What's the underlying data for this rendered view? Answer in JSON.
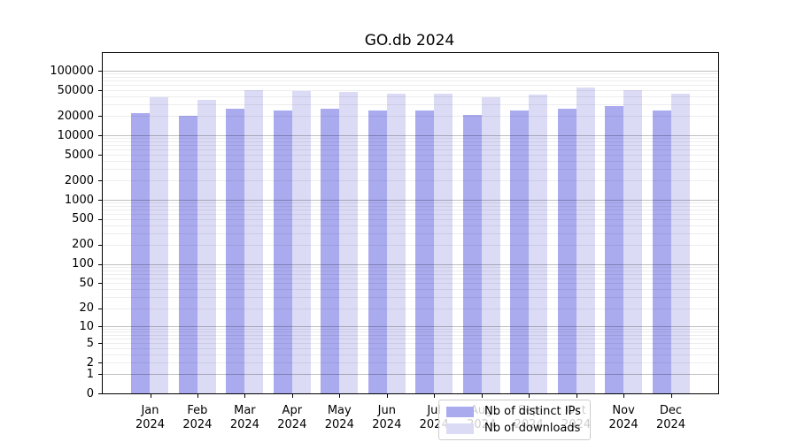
{
  "title": "GO.db 2024",
  "legend": {
    "entries": [
      {
        "label": "Nb of distinct IPs",
        "color": "#aaaaef"
      },
      {
        "label": "Nb of downloads",
        "color": "#dbdbf6"
      }
    ]
  },
  "colors": {
    "bar_distinct_ips": "#aaaaef",
    "bar_downloads": "#dbdbf6",
    "major_grid": "#bfbfbf",
    "minor_grid": "#e9e9e9",
    "axis": "#000000",
    "text": "#000000"
  },
  "chart_data": {
    "type": "bar",
    "title": "GO.db 2024",
    "categories": [
      "Jan 2024",
      "Feb 2024",
      "Mar 2024",
      "Apr 2024",
      "May 2024",
      "Jun 2024",
      "Jul 2024",
      "Aug 2024",
      "Sep 2024",
      "Oct 2024",
      "Nov 2024",
      "Dec 2024"
    ],
    "series": [
      {
        "name": "Nb of distinct IPs",
        "color": "#aaaaef",
        "values": [
          22100,
          20100,
          25400,
          24600,
          25900,
          23900,
          24100,
          21000,
          24300,
          25700,
          28500,
          24300
        ]
      },
      {
        "name": "Nb of downloads",
        "color": "#dbdbf6",
        "values": [
          38700,
          35500,
          49800,
          48300,
          46800,
          43500,
          43900,
          39100,
          42500,
          55500,
          49800,
          43900
        ]
      }
    ],
    "xlabel": "",
    "ylabel": "",
    "yscale": "log(1+y)",
    "yticks": [
      100000,
      50000,
      20000,
      10000,
      5000,
      2000,
      1000,
      500,
      200,
      100,
      50,
      20,
      10,
      5,
      2,
      1,
      0
    ],
    "ylim": [
      0,
      187000
    ],
    "grid": true,
    "legend_position": "lower center"
  }
}
